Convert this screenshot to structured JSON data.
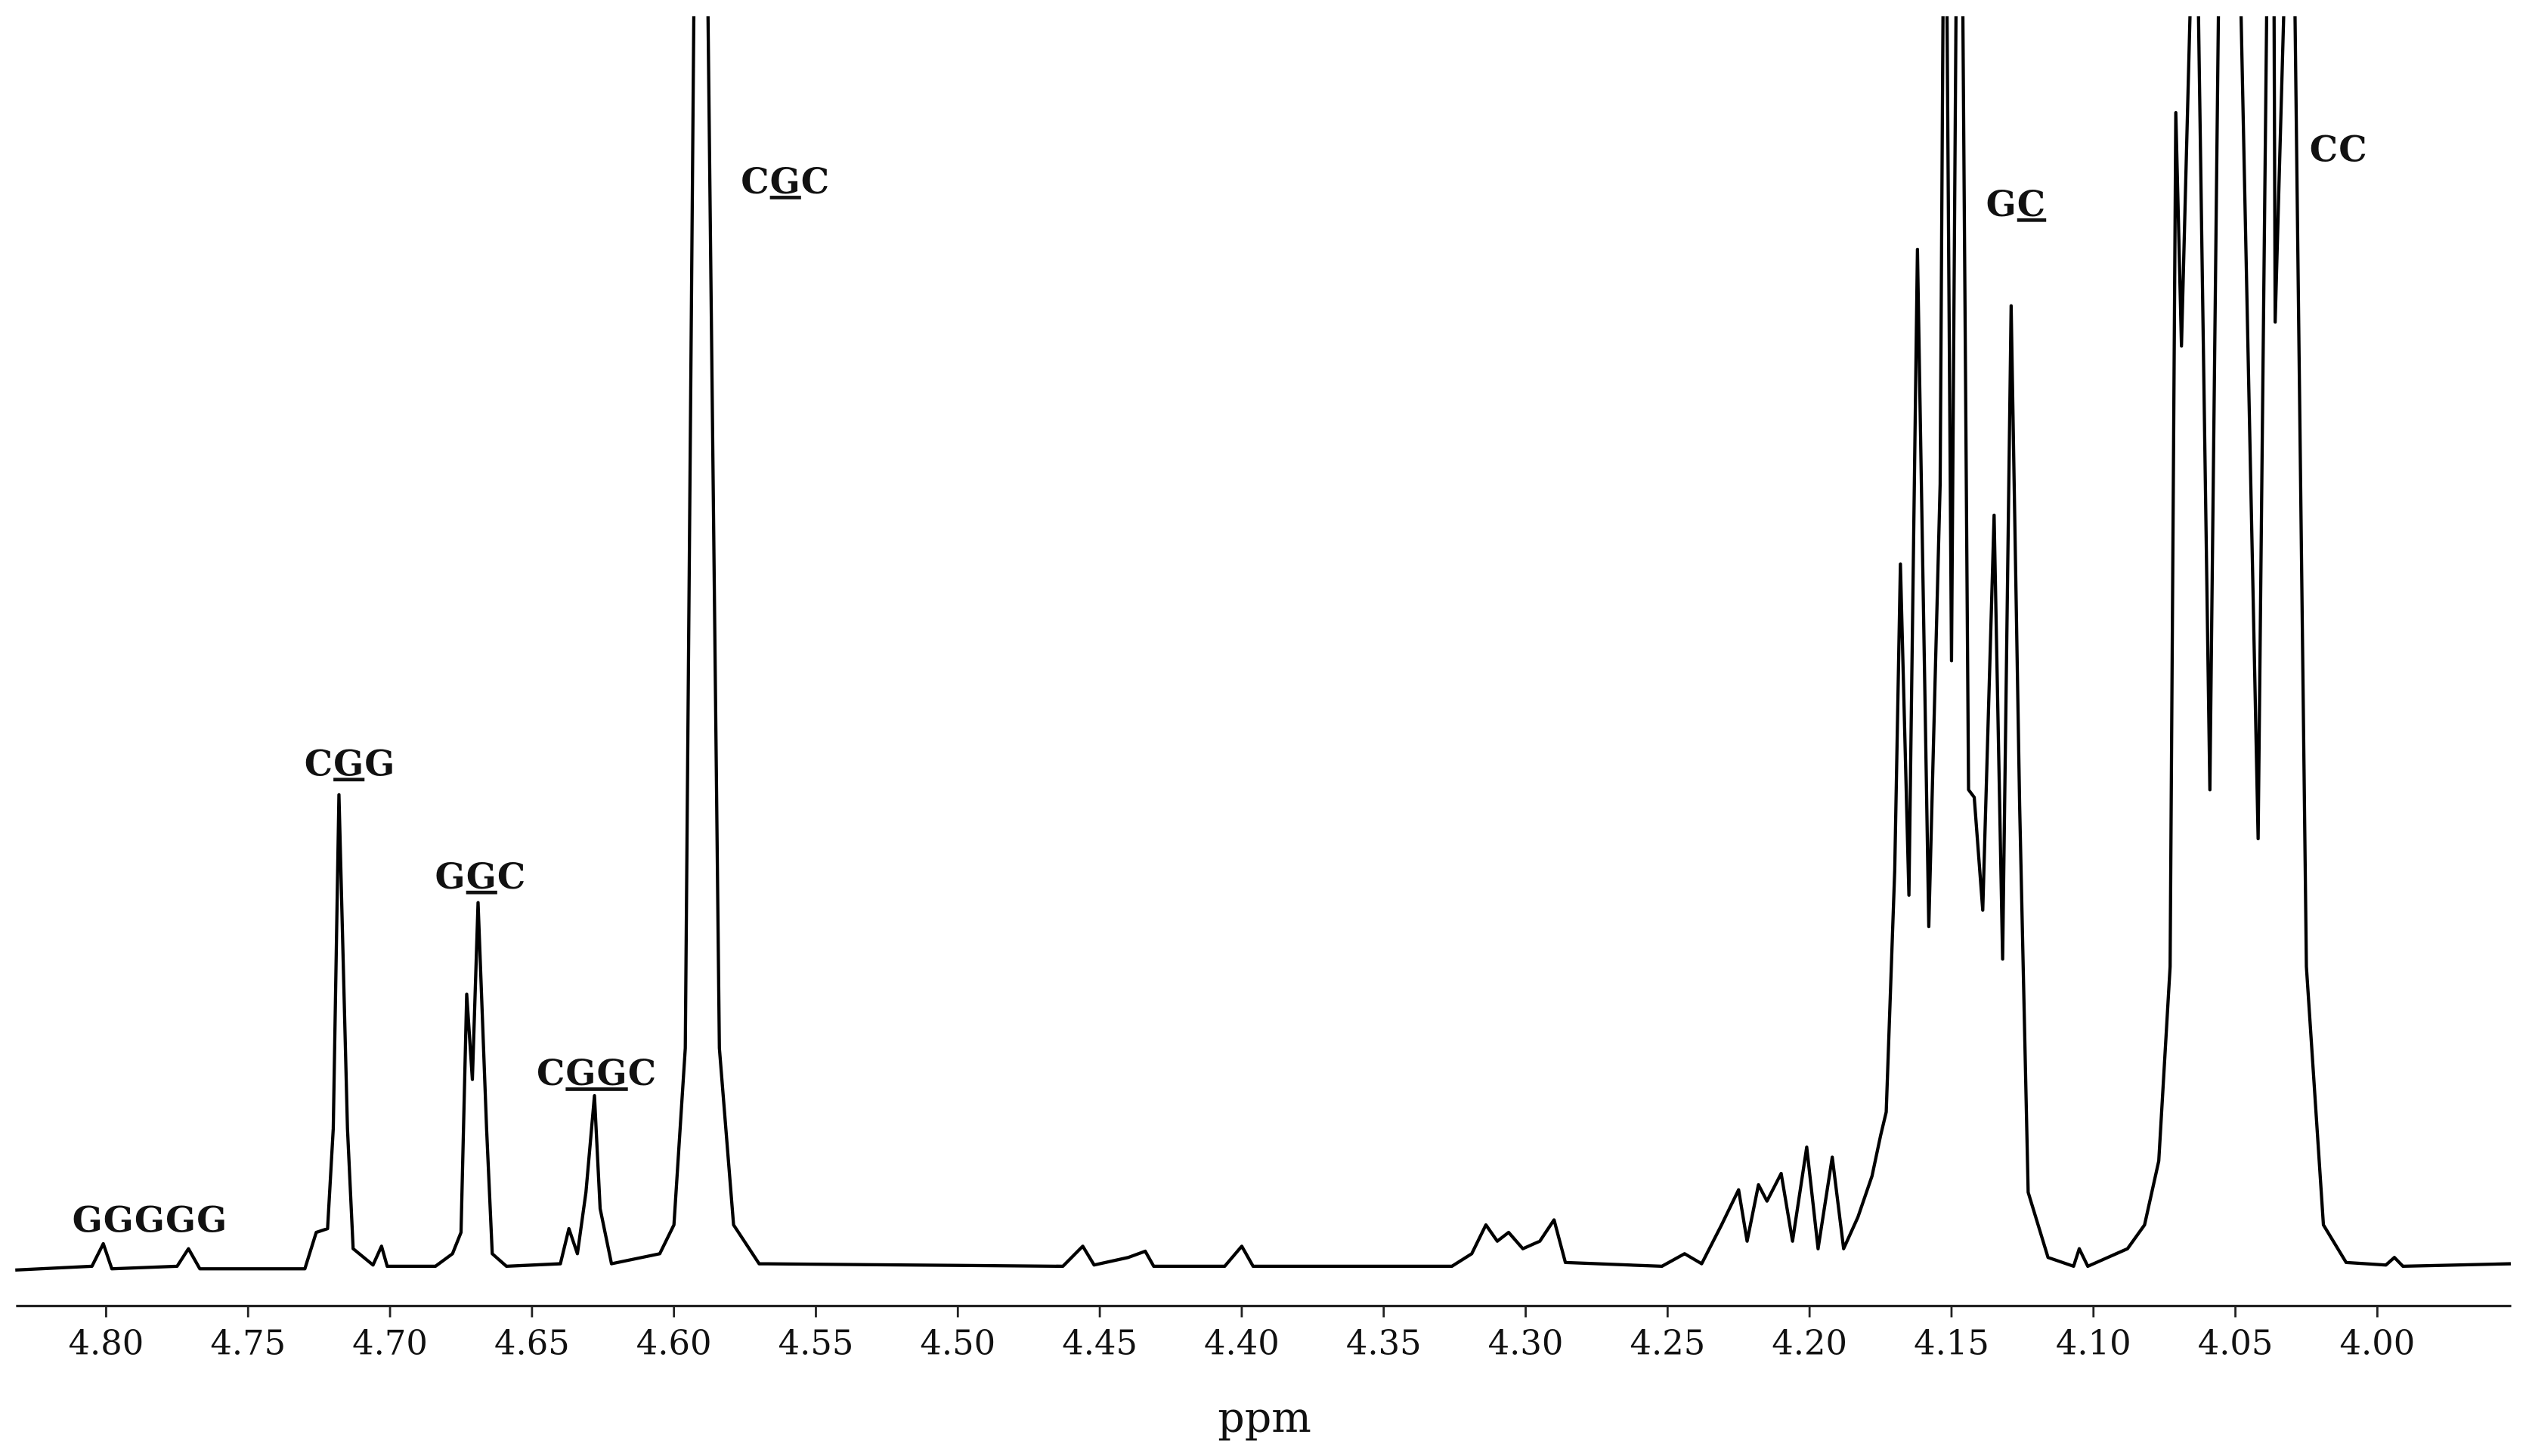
{
  "chart_data": {
    "type": "line",
    "color": "#000000",
    "x_label": "ppm",
    "xlim": [
      4.83,
      3.95
    ],
    "ylim": [
      -3,
      100
    ],
    "xticks": [
      {
        "value": 4.8,
        "label": "4.80"
      },
      4.75,
      {
        "value": 4.7,
        "label": "4.70"
      },
      4.65,
      {
        "value": 4.6,
        "label": "4.60"
      },
      4.55,
      {
        "value": 4.5,
        "label": "4.50"
      },
      4.45,
      {
        "value": 4.4,
        "label": "4.40"
      },
      4.35,
      {
        "value": 4.3,
        "label": "4.30"
      },
      4.25,
      {
        "value": 4.2,
        "label": "4.20"
      },
      4.15,
      {
        "value": 4.1,
        "label": "4.10"
      },
      4.05,
      {
        "value": 4.0,
        "label": "4.00"
      }
    ],
    "x": [
      4.832,
      4.805,
      4.801,
      4.798,
      4.775,
      4.771,
      4.767,
      4.73,
      4.726,
      4.722,
      4.72,
      4.718,
      4.715,
      4.713,
      4.706,
      4.703,
      4.701,
      4.684,
      4.678,
      4.675,
      4.673,
      4.671,
      4.669,
      4.666,
      4.664,
      4.659,
      4.64,
      4.637,
      4.634,
      4.631,
      4.628,
      4.626,
      4.622,
      4.605,
      4.6,
      4.596,
      4.593,
      4.591,
      4.588,
      4.584,
      4.579,
      4.57,
      4.463,
      4.456,
      4.452,
      4.44,
      4.434,
      4.431,
      4.406,
      4.4,
      4.396,
      4.326,
      4.319,
      4.314,
      4.31,
      4.306,
      4.301,
      4.295,
      4.29,
      4.286,
      4.252,
      4.244,
      4.238,
      4.231,
      4.225,
      4.222,
      4.218,
      4.215,
      4.21,
      4.206,
      4.201,
      4.197,
      4.192,
      4.188,
      4.183,
      4.178,
      4.175,
      4.173,
      4.17,
      4.168,
      4.165,
      4.162,
      4.158,
      4.154,
      4.153,
      4.152,
      4.15,
      4.148,
      4.146,
      4.144,
      4.142,
      4.139,
      4.135,
      4.132,
      4.129,
      4.126,
      4.123,
      4.116,
      4.107,
      4.105,
      4.102,
      4.088,
      4.082,
      4.077,
      4.073,
      4.071,
      4.069,
      4.066,
      4.064,
      4.063,
      4.059,
      4.056,
      4.053,
      4.048,
      4.042,
      4.039,
      4.037,
      4.036,
      4.033,
      4.032,
      4.029,
      4.025,
      4.019,
      4.011,
      3.997,
      3.994,
      3.991,
      3.953
    ],
    "values": [
      0,
      0.3,
      2.1,
      0.1,
      0.3,
      1.7,
      0.1,
      0.1,
      3.0,
      3.3,
      11.3,
      37.9,
      11.3,
      1.7,
      0.4,
      1.9,
      0.3,
      0.3,
      1.3,
      3.0,
      22.0,
      15.2,
      29.3,
      11.3,
      1.3,
      0.3,
      0.5,
      3.3,
      1.3,
      6.2,
      13.9,
      4.9,
      0.5,
      1.3,
      3.6,
      17.7,
      100,
      165,
      100,
      17.7,
      3.6,
      0.5,
      0.3,
      1.9,
      0.4,
      1.0,
      1.5,
      0.3,
      0.3,
      1.9,
      0.3,
      0.3,
      1.3,
      3.6,
      2.3,
      3.0,
      1.7,
      2.3,
      4.0,
      0.6,
      0.3,
      1.3,
      0.5,
      3.6,
      6.4,
      2.3,
      6.8,
      5.5,
      7.7,
      2.3,
      9.8,
      1.7,
      9.0,
      1.7,
      4.2,
      7.5,
      10.7,
      12.6,
      31.9,
      56.3,
      29.9,
      81.4,
      27.4,
      62.7,
      100,
      114,
      48.6,
      114,
      100,
      38.3,
      37.7,
      28.7,
      60.2,
      24.8,
      76.9,
      37.0,
      6.2,
      1.0,
      0.3,
      1.7,
      0.3,
      1.7,
      3.6,
      8.7,
      24.2,
      92.3,
      73.7,
      100,
      127,
      100,
      38.3,
      100,
      140,
      100,
      34.4,
      100,
      140,
      75.6,
      100,
      114,
      100,
      24.2,
      3.6,
      0.6,
      0.4,
      1.0,
      0.3,
      0.5
    ],
    "annotations": [
      {
        "text": [
          "GGGGG"
        ],
        "underline": []
      },
      {
        "text": [
          "C",
          "G",
          "G"
        ],
        "underline": [
          1
        ]
      },
      {
        "text": [
          "G",
          "G",
          "C"
        ],
        "underline": [
          1
        ]
      },
      {
        "text": [
          "C",
          "GG",
          "C"
        ],
        "underline": [
          1
        ]
      },
      {
        "text": [
          "C",
          "G",
          "C"
        ],
        "underline": [
          1
        ]
      },
      {
        "text": [
          "G",
          "C"
        ],
        "underline": [
          1
        ]
      },
      {
        "text": [
          "CC"
        ],
        "underline": []
      }
    ]
  }
}
